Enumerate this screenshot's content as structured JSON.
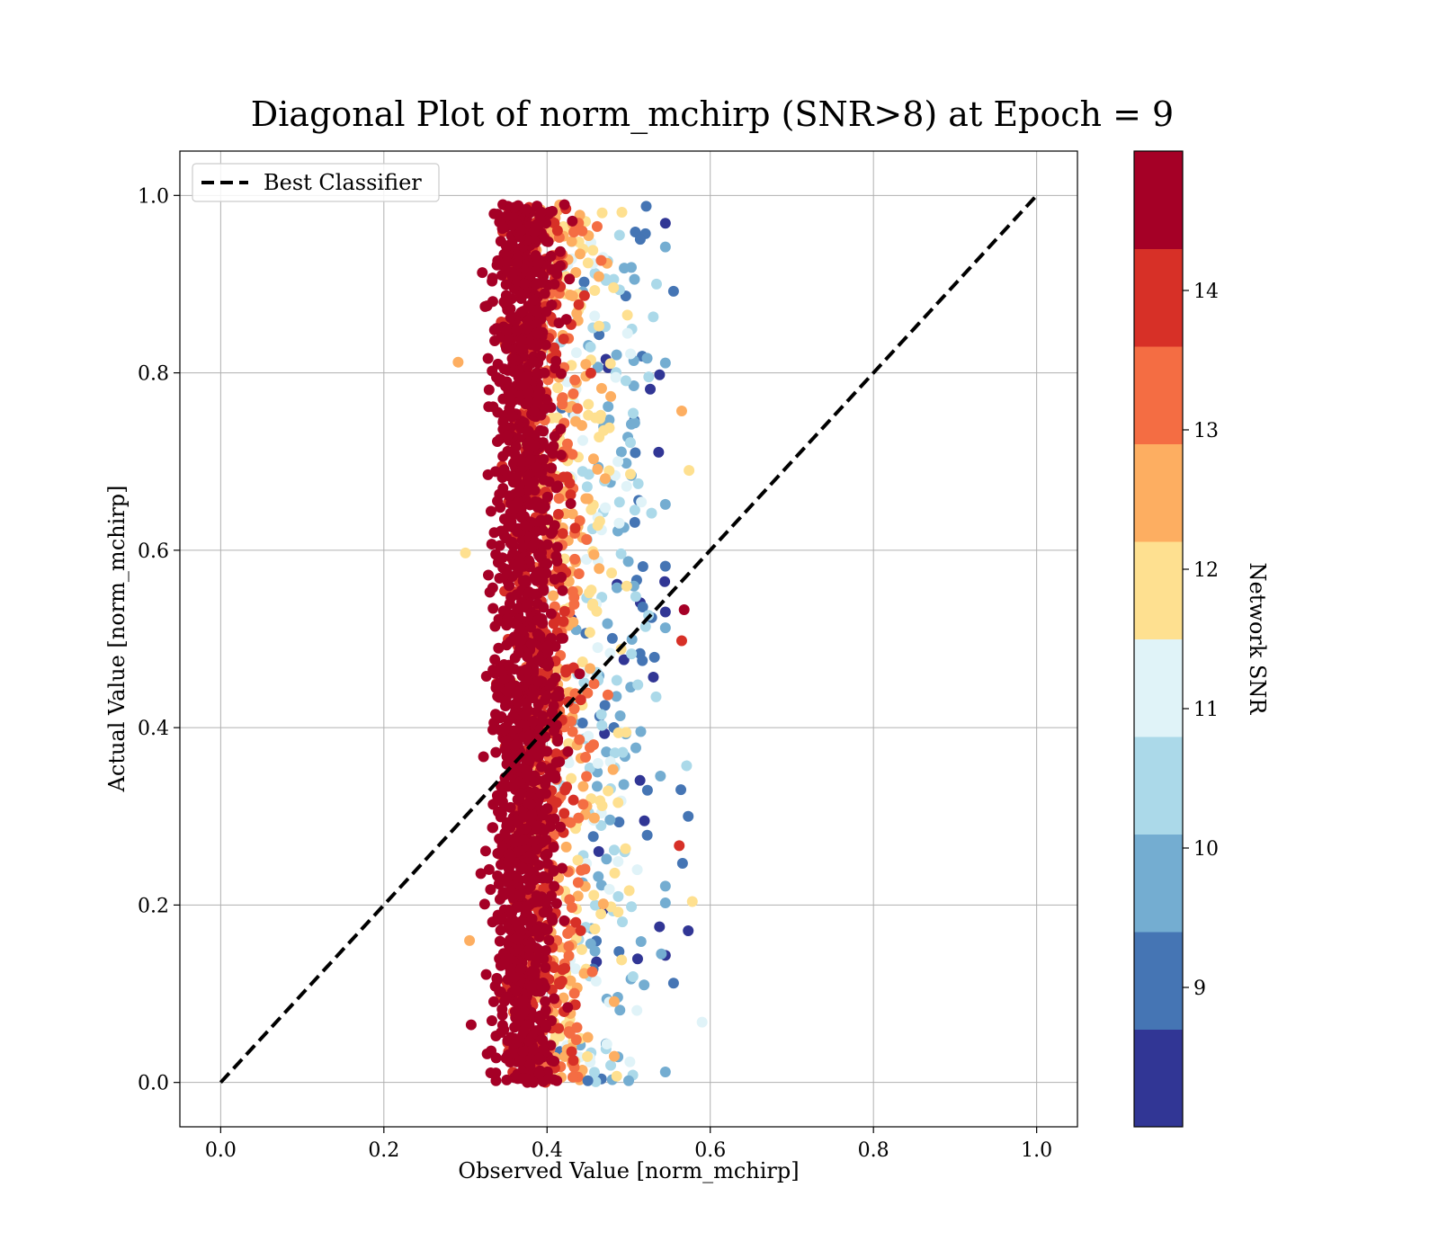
{
  "chart_data": {
    "type": "scatter",
    "title": "Diagonal Plot of norm_mchirp (SNR>8) at Epoch = 9",
    "xlabel": "Observed Value [norm_mchirp]",
    "ylabel": "Actual Value [norm_mchirp]",
    "xlim": [
      -0.05,
      1.05
    ],
    "ylim": [
      -0.05,
      1.05
    ],
    "xticks": [
      "0.0",
      "0.2",
      "0.4",
      "0.6",
      "0.8",
      "1.0"
    ],
    "yticks": [
      "0.0",
      "0.2",
      "0.4",
      "0.6",
      "0.8",
      "1.0"
    ],
    "grid": true,
    "legend": {
      "placement": "top-left",
      "entries": [
        {
          "label": "Best Classifier",
          "style": "dashed",
          "color": "#000000"
        }
      ]
    },
    "reference_line": {
      "label": "Best Classifier",
      "x": [
        0.0,
        1.0
      ],
      "y": [
        0.0,
        1.0
      ],
      "style": "dashed",
      "color": "#000000"
    },
    "scatter_description": {
      "x_range": [
        0.3,
        0.59
      ],
      "y_range": [
        0.0,
        0.99
      ],
      "dense_x_range": [
        0.32,
        0.44
      ],
      "color_by": "Network SNR"
    },
    "outliers": [
      {
        "x": 0.291,
        "y": 0.812
      },
      {
        "x": 0.3,
        "y": 0.597
      },
      {
        "x": 0.305,
        "y": 0.16
      },
      {
        "x": 0.307,
        "y": 0.065
      },
      {
        "x": 0.555,
        "y": 0.892
      },
      {
        "x": 0.565,
        "y": 0.757
      },
      {
        "x": 0.574,
        "y": 0.69
      },
      {
        "x": 0.568,
        "y": 0.533
      },
      {
        "x": 0.565,
        "y": 0.498
      },
      {
        "x": 0.562,
        "y": 0.267
      },
      {
        "x": 0.571,
        "y": 0.357
      },
      {
        "x": 0.573,
        "y": 0.3
      },
      {
        "x": 0.578,
        "y": 0.204
      },
      {
        "x": 0.573,
        "y": 0.171
      },
      {
        "x": 0.59,
        "y": 0.068
      },
      {
        "x": 0.566,
        "y": 0.247
      },
      {
        "x": 0.555,
        "y": 0.112
      },
      {
        "x": 0.412,
        "y": 0.002
      },
      {
        "x": 0.45,
        "y": 0.002
      },
      {
        "x": 0.5,
        "y": 0.002
      },
      {
        "x": 0.564,
        "y": 0.33
      }
    ],
    "colorbar": {
      "label": "Network SNR",
      "range": [
        8.0,
        15.0
      ],
      "ticks": [
        "9",
        "10",
        "11",
        "12",
        "13",
        "14"
      ],
      "tick_values": [
        9,
        10,
        11,
        12,
        13,
        14
      ],
      "levels": [
        {
          "from": 8.0,
          "to": 8.7,
          "color": "#313695"
        },
        {
          "from": 8.7,
          "to": 9.4,
          "color": "#4575b4"
        },
        {
          "from": 9.4,
          "to": 10.1,
          "color": "#74add1"
        },
        {
          "from": 10.1,
          "to": 10.8,
          "color": "#abd9e9"
        },
        {
          "from": 10.8,
          "to": 11.5,
          "color": "#e0f3f8"
        },
        {
          "from": 11.5,
          "to": 12.2,
          "color": "#fee090"
        },
        {
          "from": 12.2,
          "to": 12.9,
          "color": "#fdae61"
        },
        {
          "from": 12.9,
          "to": 13.6,
          "color": "#f46d43"
        },
        {
          "from": 13.6,
          "to": 14.3,
          "color": "#d73027"
        },
        {
          "from": 14.3,
          "to": 15.0,
          "color": "#a50026"
        }
      ]
    }
  }
}
